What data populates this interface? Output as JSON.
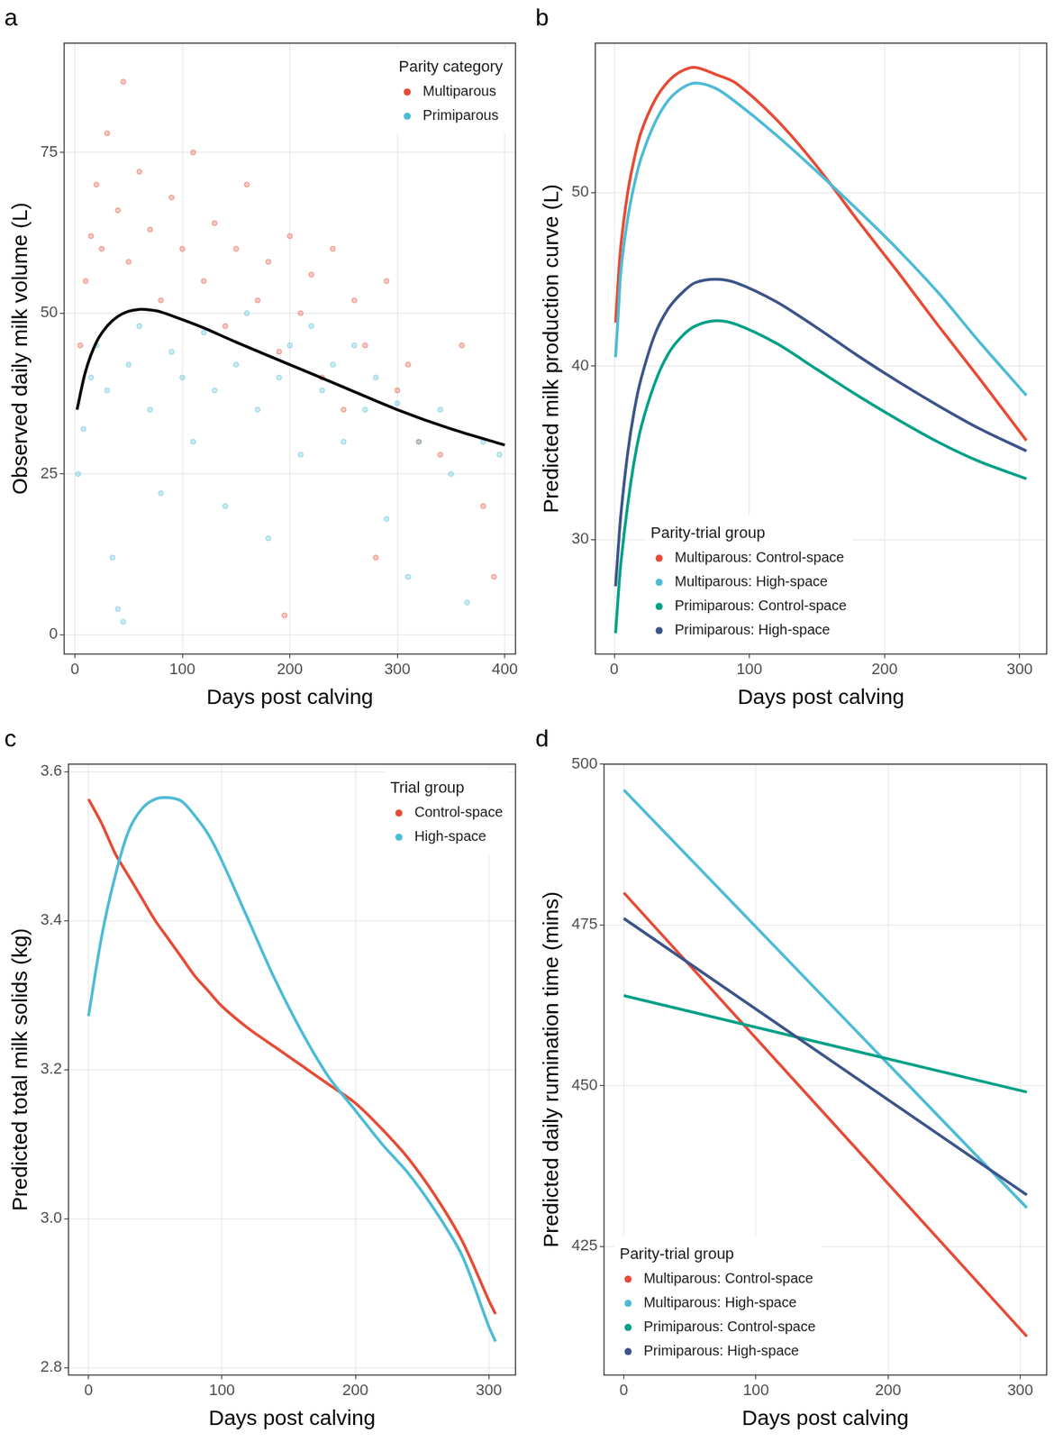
{
  "chart_data": [
    {
      "type": "scatter",
      "title": "a",
      "x_label": "Days post calving",
      "y_label": "Observed daily milk volume (L)",
      "xlim": [
        -10,
        410
      ],
      "xticks": [
        0,
        100,
        200,
        300,
        400
      ],
      "ylim": [
        -3,
        92
      ],
      "yticks": [
        0,
        25,
        50,
        75
      ],
      "grid": true,
      "legend": "top right",
      "legend_title": "Parity category",
      "series": [
        {
          "name": "Multiparous",
          "color": "#e64b35",
          "marker": "circle",
          "x": [
            5,
            10,
            15,
            20,
            25,
            30,
            40,
            45,
            50,
            60,
            70,
            80,
            90,
            100,
            110,
            120,
            130,
            140,
            150,
            160,
            170,
            180,
            190,
            195,
            200,
            210,
            220,
            230,
            240,
            250,
            260,
            270,
            280,
            290,
            300,
            310,
            320,
            340,
            360,
            380,
            390
          ],
          "values": [
            45,
            55,
            62,
            70,
            60,
            78,
            66,
            86,
            58,
            72,
            63,
            52,
            68,
            60,
            75,
            55,
            64,
            48,
            60,
            70,
            52,
            58,
            44,
            3,
            62,
            50,
            56,
            40,
            60,
            35,
            52,
            45,
            12,
            55,
            38,
            42,
            30,
            28,
            45,
            20,
            9
          ]
        },
        {
          "name": "Primiparous",
          "color": "#4dbbd5",
          "marker": "circle",
          "x": [
            3,
            8,
            15,
            20,
            30,
            35,
            40,
            45,
            50,
            60,
            70,
            80,
            90,
            100,
            110,
            120,
            130,
            140,
            150,
            160,
            170,
            180,
            190,
            200,
            210,
            220,
            230,
            240,
            250,
            260,
            270,
            280,
            290,
            300,
            310,
            320,
            340,
            350,
            365,
            380,
            395
          ],
          "values": [
            25,
            32,
            40,
            45,
            38,
            12,
            4,
            2,
            42,
            48,
            35,
            22,
            44,
            40,
            30,
            47,
            38,
            20,
            42,
            50,
            35,
            15,
            40,
            45,
            28,
            48,
            38,
            42,
            30,
            45,
            35,
            40,
            18,
            36,
            9,
            30,
            35,
            25,
            5,
            30,
            28
          ]
        },
        {
          "type": "line",
          "color": "#000000",
          "x": [
            2,
            10,
            20,
            30,
            40,
            50,
            60,
            70,
            80,
            100,
            120,
            150,
            200,
            250,
            300,
            350,
            400
          ],
          "values": [
            35,
            41,
            45.5,
            48,
            49.5,
            50.3,
            50.6,
            50.5,
            50.2,
            49,
            47.7,
            45.5,
            42,
            38.5,
            35,
            32,
            29.5
          ]
        }
      ]
    },
    {
      "type": "line",
      "title": "b",
      "x_label": "Days post calving",
      "y_label": "Predicted milk production curve (L)",
      "xlim": [
        -14,
        320
      ],
      "xticks": [
        0,
        100,
        200,
        300
      ],
      "ylim": [
        23.4,
        58.6
      ],
      "yticks": [
        30,
        40,
        50
      ],
      "grid": true,
      "legend": "bottom left",
      "legend_title": "Parity-trial group",
      "series": [
        {
          "name": "Multiparous: Control-space",
          "color": "#e64b35",
          "x": [
            1,
            3,
            5,
            10,
            15,
            20,
            30,
            40,
            50,
            60,
            75,
            90,
            120,
            150,
            180,
            210,
            240,
            270,
            305
          ],
          "values": [
            42.5,
            45,
            47,
            50,
            52,
            53.5,
            55.3,
            56.4,
            57,
            57.2,
            56.8,
            56.3,
            54.2,
            51.5,
            48.4,
            45.4,
            42.3,
            39.3,
            35.7
          ]
        },
        {
          "name": "Multiparous: High-space",
          "color": "#4dbbd5",
          "x": [
            1,
            3,
            5,
            10,
            15,
            20,
            30,
            40,
            50,
            60,
            75,
            90,
            120,
            150,
            180,
            210,
            240,
            270,
            305
          ],
          "values": [
            40.5,
            43,
            45.5,
            48.5,
            50.5,
            52,
            54,
            55.3,
            56,
            56.3,
            56,
            55.2,
            53.3,
            51.2,
            49,
            46.7,
            44.2,
            41.4,
            38.3
          ]
        },
        {
          "name": "Primiparous: Control-space",
          "color": "#00a087",
          "x": [
            1,
            3,
            5,
            10,
            15,
            20,
            30,
            40,
            50,
            60,
            75,
            90,
            120,
            150,
            180,
            210,
            240,
            270,
            305
          ],
          "values": [
            24.6,
            26.8,
            28.7,
            32,
            34.6,
            36.5,
            39,
            40.7,
            41.7,
            42.3,
            42.6,
            42.4,
            41.3,
            39.8,
            38.3,
            36.9,
            35.6,
            34.5,
            33.5
          ]
        },
        {
          "name": "Primiparous: High-space",
          "color": "#3c5488",
          "x": [
            1,
            3,
            5,
            10,
            15,
            20,
            30,
            40,
            50,
            60,
            75,
            90,
            120,
            150,
            180,
            210,
            240,
            270,
            305
          ],
          "values": [
            27.3,
            29.5,
            31.5,
            35,
            37.5,
            39.3,
            41.8,
            43.3,
            44.2,
            44.8,
            45,
            44.8,
            43.7,
            42.2,
            40.6,
            39.1,
            37.7,
            36.4,
            35.1
          ]
        }
      ]
    },
    {
      "type": "line",
      "title": "c",
      "x_label": "Days post calving",
      "y_label": "Predicted total milk solids (kg)",
      "xlim": [
        -15,
        320
      ],
      "xticks": [
        0,
        100,
        200,
        300
      ],
      "ylim": [
        2.79,
        3.61
      ],
      "yticks": [
        2.8,
        {
          "value": 3,
          "label": "3.0"
        },
        3.2,
        3.4,
        3.6
      ],
      "grid": true,
      "legend": "top right",
      "legend_title": "Trial group",
      "series": [
        {
          "name": "Control-space",
          "color": "#e64b35",
          "x": [
            0,
            10,
            20,
            30,
            40,
            50,
            60,
            70,
            80,
            90,
            100,
            120,
            140,
            160,
            180,
            200,
            220,
            240,
            260,
            280,
            300,
            305
          ],
          "values": [
            3.563,
            3.53,
            3.49,
            3.46,
            3.43,
            3.4,
            3.375,
            3.35,
            3.325,
            3.305,
            3.285,
            3.255,
            3.23,
            3.205,
            3.18,
            3.155,
            3.12,
            3.08,
            3.03,
            2.97,
            2.89,
            2.872
          ]
        },
        {
          "name": "High-space",
          "color": "#4dbbd5",
          "x": [
            0,
            10,
            20,
            30,
            40,
            50,
            60,
            70,
            80,
            90,
            100,
            120,
            140,
            160,
            180,
            200,
            220,
            240,
            260,
            280,
            300,
            305
          ],
          "values": [
            3.272,
            3.38,
            3.46,
            3.52,
            3.55,
            3.563,
            3.565,
            3.56,
            3.54,
            3.515,
            3.48,
            3.4,
            3.32,
            3.25,
            3.19,
            3.145,
            3.1,
            3.06,
            3.01,
            2.95,
            2.855,
            2.835
          ]
        }
      ]
    },
    {
      "type": "line",
      "title": "d",
      "x_label": "Days post calving",
      "y_label": "Predicted daily rumination time (mins)",
      "xlim": [
        -15,
        320
      ],
      "xticks": [
        0,
        100,
        200,
        300
      ],
      "ylim": [
        405,
        500
      ],
      "yticks": [
        425,
        450,
        475,
        500
      ],
      "grid": true,
      "legend": "bottom left",
      "legend_title": "Parity-trial group",
      "series": [
        {
          "name": "Multiparous: Control-space",
          "color": "#e64b35",
          "x": [
            0,
            305
          ],
          "values": [
            480,
            411
          ]
        },
        {
          "name": "Multiparous: High-space",
          "color": "#4dbbd5",
          "x": [
            0,
            305
          ],
          "values": [
            496,
            431
          ]
        },
        {
          "name": "Primiparous: Control-space",
          "color": "#00a087",
          "x": [
            0,
            305
          ],
          "values": [
            464,
            449
          ]
        },
        {
          "name": "Primiparous: High-space",
          "color": "#3c5488",
          "x": [
            0,
            305
          ],
          "values": [
            476,
            433
          ]
        }
      ]
    }
  ]
}
